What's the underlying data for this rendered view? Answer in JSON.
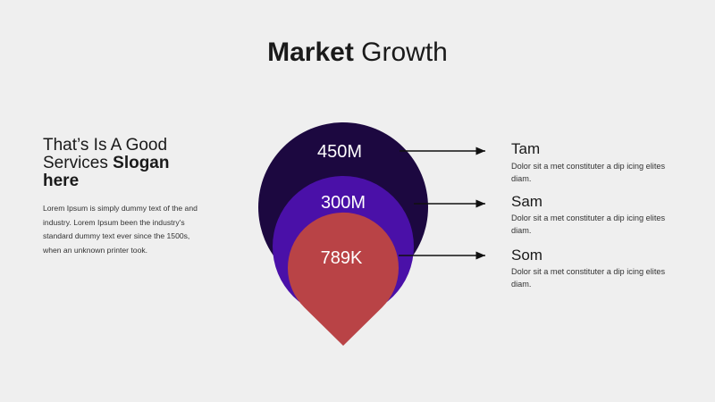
{
  "title": {
    "bold": "Market",
    "regular": "Growth"
  },
  "left": {
    "heading": "That’s Is A Good Services",
    "heading_bold": "Slogan here",
    "body": "Lorem Ipsum is simply dummy text of the and industry. Lorem Ipsum been the industry's standard dummy text ever since the 1500s, when an unknown printer took."
  },
  "circles": [
    {
      "label": "450M"
    },
    {
      "label": "300M"
    },
    {
      "label": "789K"
    }
  ],
  "items": [
    {
      "title": "Tam",
      "text": "Dolor sit a met constituter a dip icing elites diam."
    },
    {
      "title": "Sam",
      "text": "Dolor sit a met constituter a dip icing elites diam."
    },
    {
      "title": "Som",
      "text": "Dolor sit a met constituter a dip icing elites diam."
    }
  ]
}
